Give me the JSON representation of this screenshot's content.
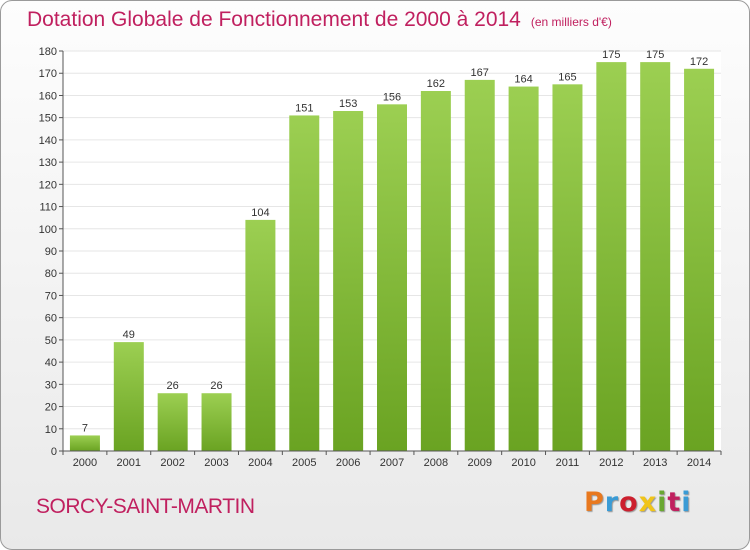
{
  "header": {
    "title": "Dotation Globale de Fonctionnement de 2000 à 2014",
    "unit": "(en milliers d'€)"
  },
  "footer": {
    "commune": "SORCY-SAINT-MARTIN",
    "brand": "Proxiti",
    "brand_colors": [
      "#e8781e",
      "#3a9bd5",
      "#cc1f2e",
      "#f0c419",
      "#69a832",
      "#c0205f",
      "#3a9bd5"
    ]
  },
  "colors": {
    "bar_light": "#9ccf52",
    "bar_dark": "#6aa322",
    "title": "#c0205f",
    "axis": "#555555",
    "grid": "#e6e6e6"
  },
  "chart_data": {
    "type": "bar",
    "categories": [
      "2000",
      "2001",
      "2002",
      "2003",
      "2004",
      "2005",
      "2006",
      "2007",
      "2008",
      "2009",
      "2010",
      "2011",
      "2012",
      "2013",
      "2014"
    ],
    "values": [
      7,
      49,
      26,
      26,
      104,
      151,
      153,
      156,
      162,
      167,
      164,
      165,
      175,
      175,
      172
    ],
    "yticks": [
      0,
      10,
      20,
      30,
      40,
      50,
      60,
      70,
      80,
      90,
      100,
      110,
      120,
      130,
      140,
      150,
      160,
      170,
      180
    ],
    "ylim": [
      0,
      180
    ],
    "grid": true,
    "legend": false
  }
}
